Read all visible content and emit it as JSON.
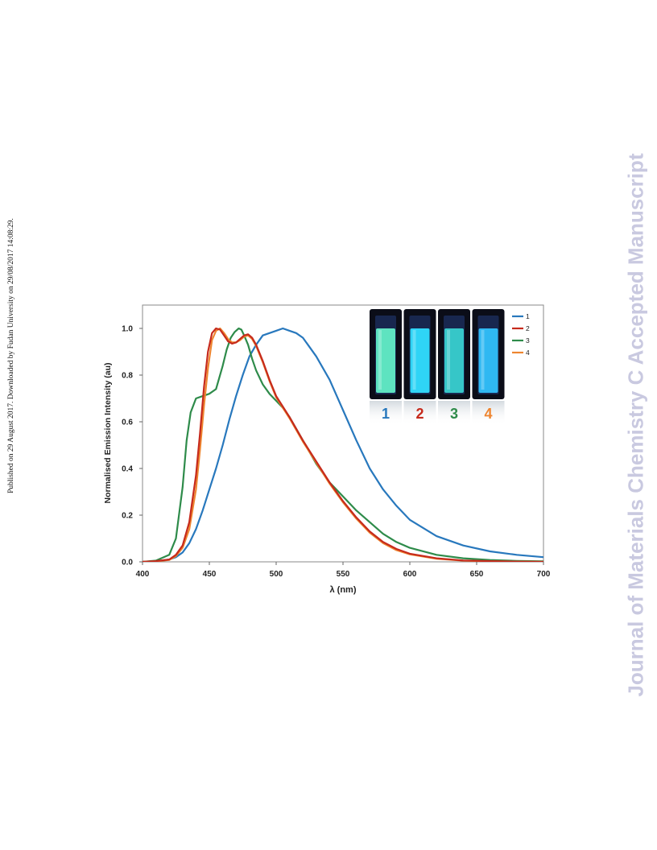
{
  "page": {
    "side_note": "Published on 29 August 2017. Downloaded by Fudan University on 29/08/2017 14:08:29.",
    "watermark": "Journal of Materials Chemistry C Accepted Manuscript"
  },
  "chart_data": {
    "type": "line",
    "title": "",
    "xlabel": "λ (nm)",
    "ylabel": "Normalised Emission Intensity (au)",
    "xlim": [
      400,
      700
    ],
    "ylim": [
      0.0,
      1.1
    ],
    "xticks": [
      "400",
      "450",
      "500",
      "550",
      "600",
      "650",
      "700"
    ],
    "yticks": [
      "0.0",
      "0.2",
      "0.4",
      "0.6",
      "0.8",
      "1.0"
    ],
    "grid": false,
    "legend": "top-right",
    "series": [
      {
        "name": "1",
        "color": "#2878bd",
        "x": [
          400,
          410,
          420,
          425,
          430,
          435,
          440,
          445,
          450,
          455,
          460,
          465,
          470,
          475,
          480,
          485,
          490,
          495,
          500,
          505,
          510,
          515,
          520,
          525,
          530,
          540,
          550,
          560,
          570,
          580,
          590,
          600,
          620,
          640,
          660,
          680,
          700
        ],
        "y": [
          0.0,
          0.002,
          0.01,
          0.02,
          0.04,
          0.08,
          0.14,
          0.22,
          0.31,
          0.4,
          0.5,
          0.61,
          0.71,
          0.8,
          0.88,
          0.93,
          0.97,
          0.98,
          0.99,
          1.0,
          0.99,
          0.98,
          0.96,
          0.92,
          0.88,
          0.78,
          0.65,
          0.52,
          0.4,
          0.31,
          0.24,
          0.18,
          0.11,
          0.07,
          0.045,
          0.03,
          0.02
        ]
      },
      {
        "name": "2",
        "color": "#c62a1c",
        "x": [
          400,
          410,
          420,
          425,
          430,
          435,
          440,
          443,
          446,
          449,
          452,
          455,
          458,
          461,
          464,
          467,
          470,
          473,
          476,
          479,
          482,
          485,
          490,
          495,
          500,
          510,
          520,
          530,
          540,
          550,
          560,
          570,
          580,
          590,
          600,
          620,
          640,
          660,
          680,
          700
        ],
        "y": [
          0.0,
          0.003,
          0.01,
          0.03,
          0.07,
          0.17,
          0.37,
          0.55,
          0.75,
          0.9,
          0.98,
          1.0,
          0.995,
          0.97,
          0.945,
          0.935,
          0.94,
          0.955,
          0.97,
          0.975,
          0.96,
          0.93,
          0.86,
          0.78,
          0.71,
          0.62,
          0.52,
          0.43,
          0.34,
          0.26,
          0.19,
          0.13,
          0.085,
          0.055,
          0.035,
          0.015,
          0.006,
          0.003,
          0.001,
          0.0
        ]
      },
      {
        "name": "3",
        "color": "#2e8b4a",
        "x": [
          400,
          410,
          420,
          425,
          430,
          433,
          436,
          440,
          445,
          450,
          455,
          460,
          463,
          466,
          469,
          472,
          474,
          476,
          479,
          482,
          485,
          490,
          495,
          500,
          505,
          510,
          520,
          530,
          540,
          550,
          560,
          570,
          580,
          590,
          600,
          620,
          640,
          660,
          680,
          700
        ],
        "y": [
          0.0,
          0.005,
          0.03,
          0.1,
          0.32,
          0.52,
          0.64,
          0.7,
          0.71,
          0.72,
          0.74,
          0.84,
          0.91,
          0.96,
          0.985,
          1.0,
          0.995,
          0.97,
          0.93,
          0.87,
          0.82,
          0.76,
          0.72,
          0.69,
          0.66,
          0.62,
          0.52,
          0.42,
          0.34,
          0.28,
          0.22,
          0.17,
          0.12,
          0.085,
          0.06,
          0.03,
          0.015,
          0.008,
          0.004,
          0.002
        ]
      },
      {
        "name": "4",
        "color": "#ee8530",
        "x": [
          400,
          410,
          420,
          425,
          430,
          435,
          440,
          443,
          446,
          449,
          452,
          455,
          458,
          461,
          464,
          467,
          470,
          473,
          476,
          479,
          482,
          485,
          490,
          495,
          500,
          510,
          520,
          530,
          540,
          550,
          560,
          570,
          580,
          590,
          600,
          620,
          640,
          660,
          680,
          700
        ],
        "y": [
          0.0,
          0.002,
          0.008,
          0.025,
          0.06,
          0.14,
          0.31,
          0.48,
          0.67,
          0.83,
          0.95,
          0.99,
          1.0,
          0.98,
          0.955,
          0.94,
          0.94,
          0.95,
          0.965,
          0.97,
          0.955,
          0.925,
          0.855,
          0.775,
          0.705,
          0.615,
          0.515,
          0.425,
          0.335,
          0.255,
          0.185,
          0.125,
          0.08,
          0.05,
          0.032,
          0.013,
          0.005,
          0.002,
          0.001,
          0.0
        ]
      }
    ],
    "inset": {
      "vials": [
        {
          "label": "1",
          "glow": "#5ee3c0",
          "num_color": "#2878bd"
        },
        {
          "label": "2",
          "glow": "#2fd4f6",
          "num_color": "#c62a1c"
        },
        {
          "label": "3",
          "glow": "#36c6c8",
          "num_color": "#2e8b4a"
        },
        {
          "label": "4",
          "glow": "#2fb8f2",
          "num_color": "#ee8530"
        }
      ]
    }
  }
}
